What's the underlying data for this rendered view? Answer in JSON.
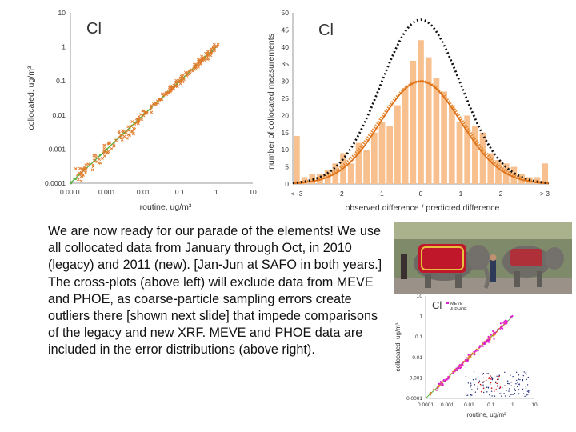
{
  "scatter_main": {
    "element_label": "Cl",
    "xlabel": "routine,  ug/m³",
    "ylabel": "collocated,  ug/m³",
    "x_ticks": [
      "0.0001",
      "0.001",
      "0.01",
      "0.1",
      "1",
      "10"
    ],
    "y_ticks": [
      "0.0001",
      "0.001",
      "0.01",
      "0.1",
      "1",
      "10"
    ]
  },
  "histogram": {
    "element_label": "Cl",
    "xlabel": "observed difference / predicted difference",
    "ylabel": "number of collocated measurements",
    "x_ticks": [
      "< -3",
      "-2",
      "-1",
      "0",
      "1",
      "2",
      "> 3"
    ],
    "y_ticks": [
      "0",
      "5",
      "10",
      "15",
      "20",
      "25",
      "30",
      "35",
      "40",
      "45",
      "50"
    ]
  },
  "scatter_inset": {
    "element_label": "Cl",
    "legend": [
      "MEVE",
      "& PHOE"
    ],
    "xlabel": "routine,  ug/m³",
    "ylabel": "collocated,  ug/m³",
    "x_ticks": [
      "0.0001",
      "0.001",
      "0.01",
      "0.1",
      "1",
      "10"
    ],
    "y_ticks": [
      "0.0001",
      "0.001",
      "0.01",
      "0.1",
      "1",
      "10"
    ]
  },
  "paragraph": {
    "part1": "We are now ready for our  parade of the elements!  We use all collocated data from January through Oct, in 2010 (legacy) and 2011 (new).  [Jan-Jun at SAFO in both years.]  The cross-plots (above left) will exclude data from MEVE and PHOE, as coarse-particle sampling errors create outliers there [shown next slide] that impede comparisons of the legacy and new XRF. MEVE and PHOE data ",
    "underlined": "are",
    "part2": " included in the error distributions (above right)."
  },
  "colors": {
    "orange": "#e07b2a",
    "bar": "#f7c08e",
    "green": "#55b140",
    "magenta": "#e020d0",
    "navy": "#1f2a7a",
    "red": "#cc1010"
  },
  "chart_data": [
    {
      "type": "scatter",
      "title": "Cl",
      "xlabel": "routine,  ug/m³",
      "ylabel": "collocated,  ug/m³",
      "xscale": "log",
      "yscale": "log",
      "xlim": [
        0.0001,
        10
      ],
      "ylim": [
        0.0001,
        10
      ],
      "series": [
        {
          "type": "line",
          "x": [
            0.0001,
            1
          ],
          "y": [
            0.0001,
            1
          ]
        },
        {
          "type": "scatter",
          "x": [
            0.00015,
            0.0003,
            0.0005,
            0.0008,
            0.0015,
            0.003,
            0.006,
            0.012,
            0.03,
            0.06,
            0.15,
            0.3,
            0.6
          ],
          "y": [
            0.00025,
            0.0004,
            0.0006,
            0.0012,
            0.002,
            0.0035,
            0.008,
            0.015,
            0.025,
            0.07,
            0.13,
            0.35,
            0.55
          ]
        }
      ]
    },
    {
      "type": "bar",
      "title": "Cl",
      "xlabel": "observed difference / predicted difference",
      "ylabel": "number of collocated measurements",
      "ylim": [
        0,
        50
      ],
      "categories": [
        "< -3",
        "-3",
        "-2.8",
        "-2.6",
        "-2.4",
        "-2.2",
        "-2",
        "-1.8",
        "-1.6",
        "-1.4",
        "-1.2",
        "-1",
        "-0.8",
        "-0.6",
        "-0.4",
        "-0.2",
        "0",
        "0.2",
        "0.4",
        "0.6",
        "0.8",
        "1",
        "1.2",
        "1.4",
        "1.6",
        "1.8",
        "2",
        "2.2",
        "2.4",
        "2.6",
        "2.8",
        "3",
        "> 3"
      ],
      "values": [
        14,
        2,
        3,
        3,
        4,
        6,
        9,
        6,
        12,
        10,
        15,
        18,
        17,
        23,
        28,
        36,
        42,
        37,
        31,
        27,
        23,
        18,
        20,
        17,
        15,
        9,
        7,
        6,
        5,
        3,
        2,
        2,
        6
      ],
      "series": [
        {
          "name": "fitted normal curve",
          "type": "line"
        },
        {
          "name": "standard normal curve",
          "type": "line"
        }
      ]
    },
    {
      "type": "scatter",
      "title": "Cl",
      "legend": [
        "MEVE",
        "& PHOE"
      ],
      "xlabel": "routine,  ug/m³",
      "ylabel": "collocated,  ug/m³",
      "xscale": "log",
      "yscale": "log",
      "xlim": [
        0.0001,
        10
      ],
      "ylim": [
        0.0001,
        10
      ]
    }
  ]
}
